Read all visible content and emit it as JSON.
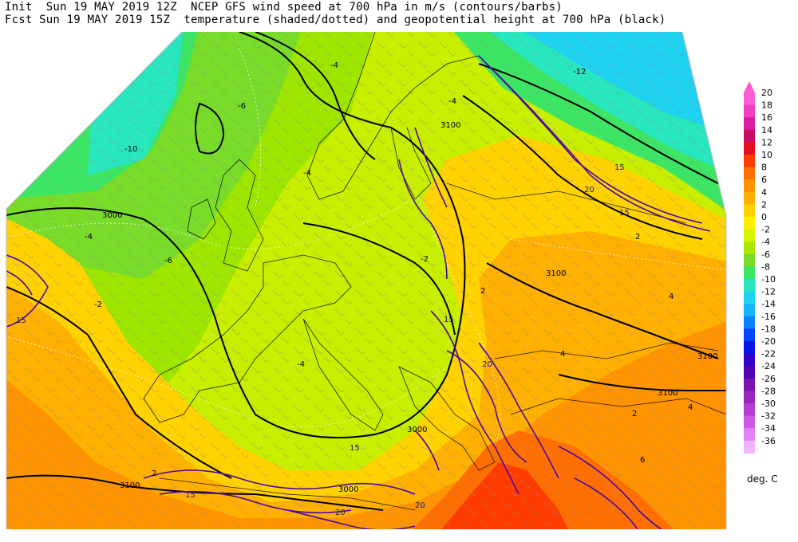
{
  "header": {
    "line1": "Init  Sun 19 MAY 2019 12Z  NCEP GFS wind speed at 700 hPa in m/s (contours/barbs)",
    "line2": "Fcst Sun 19 MAY 2019 15Z  temperature (shaded/dotted) and geopotential height at 700 hPa (black)"
  },
  "colorbar": {
    "unit": "deg. C",
    "levels": [
      {
        "label": "20",
        "color": "#ff5fd2"
      },
      {
        "label": "18",
        "color": "#f23fbe"
      },
      {
        "label": "16",
        "color": "#d81e9f"
      },
      {
        "label": "14",
        "color": "#c80a64"
      },
      {
        "label": "12",
        "color": "#e60f1e"
      },
      {
        "label": "10",
        "color": "#ff3c00"
      },
      {
        "label": "8",
        "color": "#ff6e00"
      },
      {
        "label": "6",
        "color": "#ff9400"
      },
      {
        "label": "4",
        "color": "#ffb000"
      },
      {
        "label": "2",
        "color": "#ffd200"
      },
      {
        "label": "0",
        "color": "#fff000"
      },
      {
        "label": "-2",
        "color": "#d7f500"
      },
      {
        "label": "-4",
        "color": "#aae600"
      },
      {
        "label": "-6",
        "color": "#78dc28"
      },
      {
        "label": "-8",
        "color": "#3ce664"
      },
      {
        "label": "-10",
        "color": "#28e6be"
      },
      {
        "label": "-12",
        "color": "#1ed2f0"
      },
      {
        "label": "-14",
        "color": "#14b4ff"
      },
      {
        "label": "-16",
        "color": "#0a82ff"
      },
      {
        "label": "-18",
        "color": "#0046ff"
      },
      {
        "label": "-20",
        "color": "#0a14e6"
      },
      {
        "label": "-22",
        "color": "#3200c8"
      },
      {
        "label": "-24",
        "color": "#5000b4"
      },
      {
        "label": "-26",
        "color": "#7814b4"
      },
      {
        "label": "-28",
        "color": "#9628be"
      },
      {
        "label": "-30",
        "color": "#b43cd2"
      },
      {
        "label": "-32",
        "color": "#cd5ae6"
      },
      {
        "label": "-34",
        "color": "#e182f5"
      },
      {
        "label": "-36",
        "color": "#f0b4fa"
      }
    ]
  },
  "map_labels": {
    "height_contours": [
      "3000",
      "3100",
      "3100",
      "3100",
      "3100",
      "3000",
      "3000",
      "3100"
    ],
    "wind_contours": [
      "15",
      "15",
      "20",
      "15",
      "15",
      "15",
      "20",
      "15",
      "20",
      "20"
    ],
    "temp_labels": [
      "-4",
      "-6",
      "-10",
      "-4",
      "-6",
      "-4",
      "-2",
      "-4",
      "-4",
      "-2",
      "-12",
      "2",
      "2",
      "4",
      "4",
      "2",
      "6",
      "2",
      "4"
    ]
  }
}
